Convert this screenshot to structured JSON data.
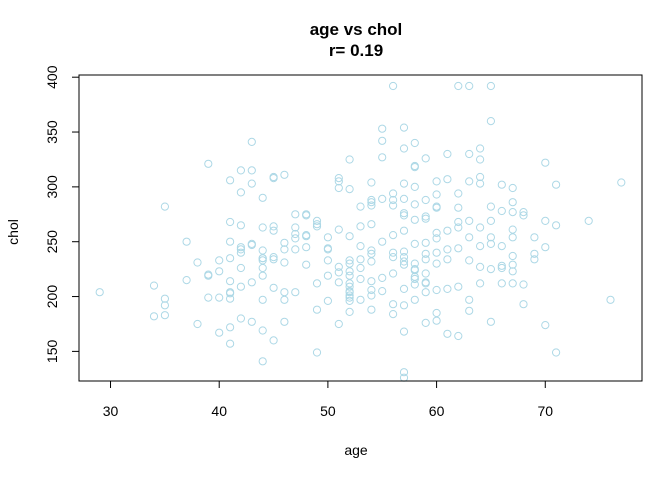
{
  "chart_data": {
    "type": "scatter",
    "title": "age vs chol",
    "subtitle": "r= 0.19",
    "xlabel": "age",
    "ylabel": "chol",
    "xlim": [
      27.1,
      78.9
    ],
    "ylim": [
      123,
      402
    ],
    "xticks": [
      30,
      40,
      50,
      60,
      70
    ],
    "yticks": [
      150,
      200,
      250,
      300,
      350,
      400
    ],
    "point_color": "#add8e6",
    "grid": false,
    "legend": "none",
    "points": [
      [
        29,
        204
      ],
      [
        34,
        182
      ],
      [
        34,
        210
      ],
      [
        35,
        183
      ],
      [
        35,
        192
      ],
      [
        35,
        198
      ],
      [
        35,
        282
      ],
      [
        37,
        215
      ],
      [
        37,
        250
      ],
      [
        38,
        175
      ],
      [
        38,
        231
      ],
      [
        39,
        199
      ],
      [
        39,
        219
      ],
      [
        39,
        220
      ],
      [
        39,
        321
      ],
      [
        40,
        167
      ],
      [
        40,
        199
      ],
      [
        40,
        223
      ],
      [
        40,
        233
      ],
      [
        41,
        157
      ],
      [
        41,
        172
      ],
      [
        41,
        198
      ],
      [
        41,
        203
      ],
      [
        41,
        204
      ],
      [
        41,
        214
      ],
      [
        41,
        235
      ],
      [
        41,
        250
      ],
      [
        41,
        268
      ],
      [
        41,
        306
      ],
      [
        42,
        180
      ],
      [
        42,
        209
      ],
      [
        42,
        226
      ],
      [
        42,
        240
      ],
      [
        42,
        243
      ],
      [
        42,
        245
      ],
      [
        42,
        265
      ],
      [
        42,
        295
      ],
      [
        42,
        315
      ],
      [
        43,
        177
      ],
      [
        43,
        213
      ],
      [
        43,
        247
      ],
      [
        43,
        248
      ],
      [
        43,
        303
      ],
      [
        43,
        315
      ],
      [
        43,
        341
      ],
      [
        44,
        141
      ],
      [
        44,
        169
      ],
      [
        44,
        197
      ],
      [
        44,
        219
      ],
      [
        44,
        226
      ],
      [
        44,
        233
      ],
      [
        44,
        235
      ],
      [
        44,
        235
      ],
      [
        44,
        242
      ],
      [
        44,
        263
      ],
      [
        44,
        290
      ],
      [
        45,
        160
      ],
      [
        45,
        208
      ],
      [
        45,
        234
      ],
      [
        45,
        236
      ],
      [
        45,
        260
      ],
      [
        45,
        264
      ],
      [
        45,
        308
      ],
      [
        45,
        309
      ],
      [
        46,
        177
      ],
      [
        46,
        197
      ],
      [
        46,
        204
      ],
      [
        46,
        231
      ],
      [
        46,
        243
      ],
      [
        46,
        249
      ],
      [
        46,
        311
      ],
      [
        47,
        204
      ],
      [
        47,
        243
      ],
      [
        47,
        253
      ],
      [
        47,
        257
      ],
      [
        47,
        263
      ],
      [
        47,
        275
      ],
      [
        48,
        229
      ],
      [
        48,
        245
      ],
      [
        48,
        255
      ],
      [
        48,
        256
      ],
      [
        48,
        274
      ],
      [
        48,
        275
      ],
      [
        49,
        149
      ],
      [
        49,
        188
      ],
      [
        49,
        212
      ],
      [
        49,
        264
      ],
      [
        49,
        266
      ],
      [
        49,
        269
      ],
      [
        50,
        196
      ],
      [
        50,
        219
      ],
      [
        50,
        233
      ],
      [
        50,
        243
      ],
      [
        50,
        244
      ],
      [
        50,
        254
      ],
      [
        51,
        175
      ],
      [
        51,
        213
      ],
      [
        51,
        222
      ],
      [
        51,
        227
      ],
      [
        51,
        261
      ],
      [
        51,
        299
      ],
      [
        51,
        305
      ],
      [
        51,
        308
      ],
      [
        52,
        186
      ],
      [
        52,
        196
      ],
      [
        52,
        199
      ],
      [
        52,
        201
      ],
      [
        52,
        204
      ],
      [
        52,
        205
      ],
      [
        52,
        209
      ],
      [
        52,
        212
      ],
      [
        52,
        219
      ],
      [
        52,
        223
      ],
      [
        52,
        230
      ],
      [
        52,
        233
      ],
      [
        52,
        255
      ],
      [
        52,
        298
      ],
      [
        52,
        325
      ],
      [
        53,
        197
      ],
      [
        53,
        216
      ],
      [
        53,
        226
      ],
      [
        53,
        234
      ],
      [
        53,
        246
      ],
      [
        53,
        264
      ],
      [
        53,
        282
      ],
      [
        54,
        188
      ],
      [
        54,
        201
      ],
      [
        54,
        206
      ],
      [
        54,
        214
      ],
      [
        54,
        232
      ],
      [
        54,
        239
      ],
      [
        54,
        242
      ],
      [
        54,
        266
      ],
      [
        54,
        283
      ],
      [
        54,
        286
      ],
      [
        54,
        288
      ],
      [
        54,
        304
      ],
      [
        55,
        205
      ],
      [
        55,
        217
      ],
      [
        55,
        250
      ],
      [
        55,
        289
      ],
      [
        55,
        327
      ],
      [
        55,
        342
      ],
      [
        55,
        353
      ],
      [
        56,
        184
      ],
      [
        56,
        193
      ],
      [
        56,
        221
      ],
      [
        56,
        236
      ],
      [
        56,
        240
      ],
      [
        56,
        256
      ],
      [
        56,
        283
      ],
      [
        56,
        288
      ],
      [
        56,
        294
      ],
      [
        56,
        392
      ],
      [
        57,
        126
      ],
      [
        57,
        131
      ],
      [
        57,
        168
      ],
      [
        57,
        192
      ],
      [
        57,
        207
      ],
      [
        57,
        229
      ],
      [
        57,
        232
      ],
      [
        57,
        236
      ],
      [
        57,
        241
      ],
      [
        57,
        260
      ],
      [
        57,
        274
      ],
      [
        57,
        276
      ],
      [
        57,
        289
      ],
      [
        57,
        303
      ],
      [
        57,
        335
      ],
      [
        57,
        354
      ],
      [
        58,
        197
      ],
      [
        58,
        211
      ],
      [
        58,
        216
      ],
      [
        58,
        218
      ],
      [
        58,
        224
      ],
      [
        58,
        225
      ],
      [
        58,
        230
      ],
      [
        58,
        248
      ],
      [
        58,
        270
      ],
      [
        58,
        284
      ],
      [
        58,
        300
      ],
      [
        58,
        318
      ],
      [
        58,
        319
      ],
      [
        58,
        340
      ],
      [
        59,
        176
      ],
      [
        59,
        204
      ],
      [
        59,
        212
      ],
      [
        59,
        213
      ],
      [
        59,
        221
      ],
      [
        59,
        234
      ],
      [
        59,
        239
      ],
      [
        59,
        249
      ],
      [
        59,
        271
      ],
      [
        59,
        273
      ],
      [
        59,
        288
      ],
      [
        59,
        326
      ],
      [
        60,
        178
      ],
      [
        60,
        185
      ],
      [
        60,
        206
      ],
      [
        60,
        230
      ],
      [
        60,
        240
      ],
      [
        60,
        253
      ],
      [
        60,
        258
      ],
      [
        60,
        281
      ],
      [
        60,
        282
      ],
      [
        60,
        293
      ],
      [
        60,
        305
      ],
      [
        61,
        166
      ],
      [
        61,
        207
      ],
      [
        61,
        234
      ],
      [
        61,
        243
      ],
      [
        61,
        260
      ],
      [
        61,
        307
      ],
      [
        61,
        330
      ],
      [
        62,
        164
      ],
      [
        62,
        209
      ],
      [
        62,
        244
      ],
      [
        62,
        263
      ],
      [
        62,
        268
      ],
      [
        62,
        281
      ],
      [
        62,
        294
      ],
      [
        62,
        392
      ],
      [
        63,
        187
      ],
      [
        63,
        197
      ],
      [
        63,
        233
      ],
      [
        63,
        254
      ],
      [
        63,
        269
      ],
      [
        63,
        305
      ],
      [
        63,
        330
      ],
      [
        63,
        392
      ],
      [
        64,
        212
      ],
      [
        64,
        227
      ],
      [
        64,
        246
      ],
      [
        64,
        263
      ],
      [
        64,
        303
      ],
      [
        64,
        309
      ],
      [
        64,
        325
      ],
      [
        64,
        335
      ],
      [
        65,
        177
      ],
      [
        65,
        225
      ],
      [
        65,
        248
      ],
      [
        65,
        254
      ],
      [
        65,
        269
      ],
      [
        65,
        282
      ],
      [
        65,
        360
      ],
      [
        65,
        392
      ],
      [
        66,
        212
      ],
      [
        66,
        226
      ],
      [
        66,
        228
      ],
      [
        66,
        246
      ],
      [
        66,
        278
      ],
      [
        66,
        302
      ],
      [
        67,
        212
      ],
      [
        67,
        223
      ],
      [
        67,
        229
      ],
      [
        67,
        237
      ],
      [
        67,
        254
      ],
      [
        67,
        261
      ],
      [
        67,
        277
      ],
      [
        67,
        286
      ],
      [
        67,
        299
      ],
      [
        68,
        193
      ],
      [
        68,
        211
      ],
      [
        68,
        274
      ],
      [
        68,
        277
      ],
      [
        69,
        234
      ],
      [
        69,
        239
      ],
      [
        69,
        254
      ],
      [
        70,
        174
      ],
      [
        70,
        245
      ],
      [
        70,
        269
      ],
      [
        70,
        322
      ],
      [
        71,
        149
      ],
      [
        71,
        265
      ],
      [
        71,
        302
      ],
      [
        74,
        269
      ],
      [
        76,
        197
      ],
      [
        77,
        304
      ]
    ]
  }
}
